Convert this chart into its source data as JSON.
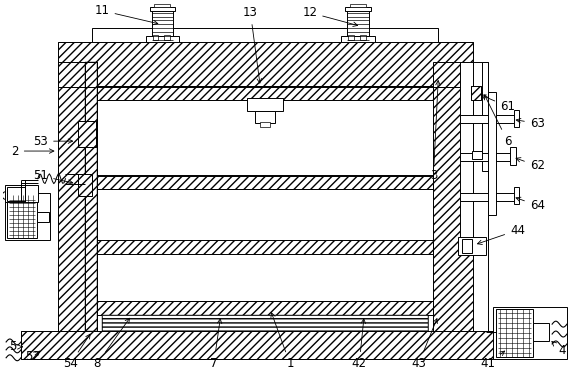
{
  "bg_color": "#ffffff",
  "lc": "#000000",
  "figsize": [
    5.79,
    3.72
  ],
  "dpi": 100,
  "lw": 0.7
}
